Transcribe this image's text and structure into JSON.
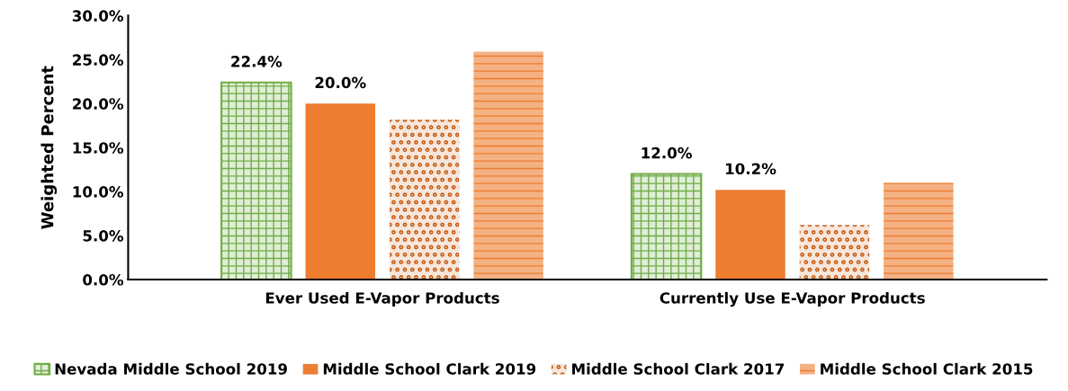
{
  "chart_data": {
    "type": "bar",
    "ylabel": "Weighted Percent",
    "categories": [
      "Ever Used E-Vapor Products",
      "Currently Use E-Vapor Products"
    ],
    "series": [
      {
        "name": "Nevada Middle School 2019",
        "color": "#70ad47",
        "values": [
          22.4,
          12.0
        ],
        "value_labels": [
          "22.4%",
          "12.0%"
        ]
      },
      {
        "name": "Middle School Clark 2019",
        "color": "#ed7d31",
        "values": [
          20.0,
          10.2
        ],
        "value_labels": [
          "20.0%",
          "10.2%"
        ]
      },
      {
        "name": "Middle School Clark 2017",
        "color": "#c55a11",
        "values": [
          18.2,
          6.2
        ]
      },
      {
        "name": "Middle School Clark 2015",
        "color": "#f4b183",
        "values": [
          25.9,
          11.0
        ]
      }
    ],
    "ylim": [
      0,
      30
    ],
    "yticks": [
      {
        "value": 0,
        "label": "0.0%"
      },
      {
        "value": 5,
        "label": "5.0%"
      },
      {
        "value": 10,
        "label": "10.0%"
      },
      {
        "value": 15,
        "label": "15.0%"
      },
      {
        "value": 20,
        "label": "20.0%"
      },
      {
        "value": 25,
        "label": "25.0%"
      },
      {
        "value": 30,
        "label": "30.0%"
      }
    ],
    "grid": false,
    "legend": "bottom"
  }
}
